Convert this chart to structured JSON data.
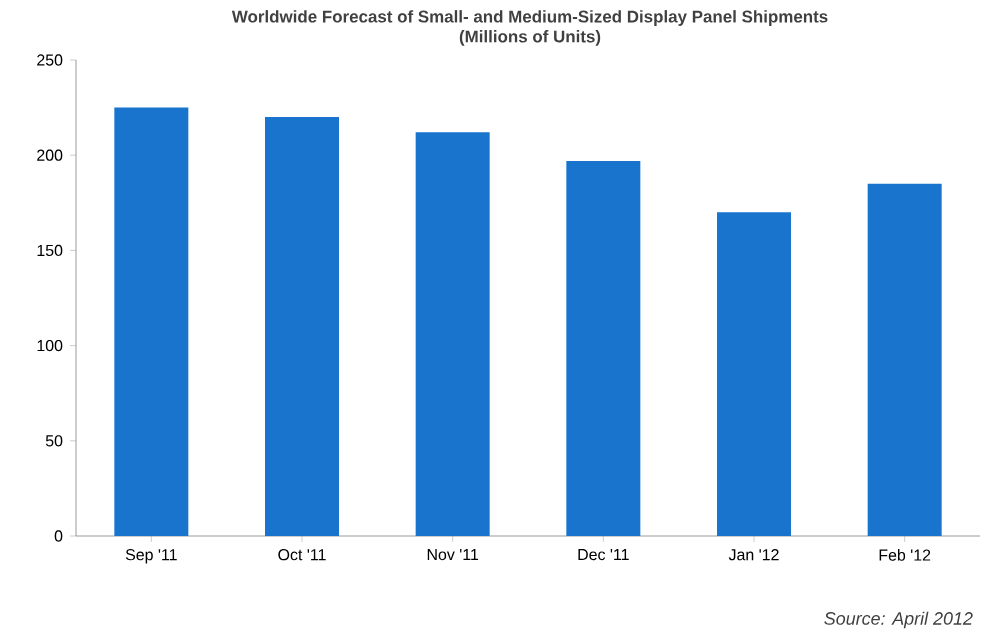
{
  "chart_data": {
    "type": "bar",
    "title": "Worldwide Forecast of Small- and Medium-Sized Display Panel Shipments",
    "subtitle": "(Millions of Units)",
    "categories": [
      "Sep '11",
      "Oct '11",
      "Nov '11",
      "Dec '11",
      "Jan '12",
      "Feb '12"
    ],
    "values": [
      225,
      220,
      212,
      197,
      170,
      185
    ],
    "color": "#1874cd",
    "ylim": [
      0,
      250
    ],
    "yticks": [
      0,
      50,
      100,
      150,
      200,
      250
    ],
    "grid": false,
    "annotations": [
      "Source: April 2012"
    ]
  }
}
